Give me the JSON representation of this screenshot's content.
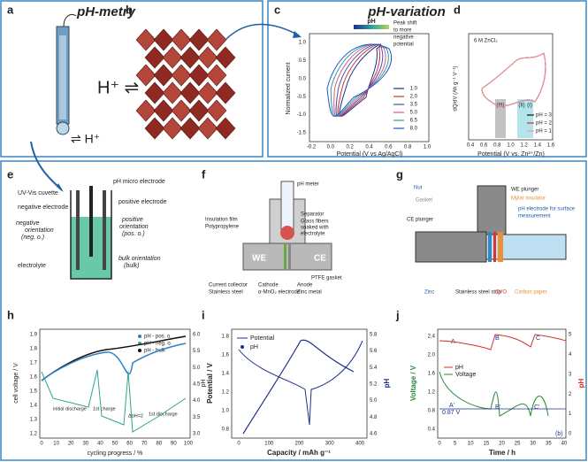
{
  "panel_a": {
    "label": "a",
    "title": "pH-metry",
    "ion": "⇌ H⁺"
  },
  "panel_b": {
    "label": "b",
    "ion": "H⁺ ⇌"
  },
  "panel_c": {
    "label": "c",
    "title": "pH-variation",
    "y_label": "Normalized current",
    "x_label": "Potential (V vs Ag/AgCl)",
    "annotation": [
      "Peak shift",
      "to more",
      "negative",
      "potential"
    ],
    "legend_title": "pH",
    "legend": [
      "1.0",
      "2.0",
      "3.5",
      "5.0",
      "6.5",
      "8.0"
    ],
    "yticks": [
      "1.0",
      "0.5",
      "0.0",
      "-0.5",
      "-1.0",
      "-1.5"
    ],
    "xticks": [
      "-0.2",
      "0.0",
      "0.2",
      "0.4",
      "0.6",
      "0.8",
      "1.0"
    ]
  },
  "panel_d": {
    "label": "d",
    "annotation": "6 M ZnCl₂",
    "y_label": "dQ/dV (Ah g⁻¹ V⁻¹)",
    "x_label": "Potential (V vs. Zn²⁺/Zn)",
    "legend": [
      "pH = 3",
      "pH = 2",
      "pH = 1"
    ],
    "regions": [
      "(III)",
      "(II)",
      "(I)"
    ],
    "xticks": [
      "0.4",
      "0.6",
      "0.8",
      "1.0",
      "1.2",
      "1.4",
      "1.6"
    ]
  },
  "panel_e": {
    "label": "e",
    "texts": [
      "UV-Vis cuvette",
      "negative electrode",
      "negative",
      "orientation",
      "(neg. o.)",
      "electrolyte",
      "pH micro electrode",
      "positive electrode",
      "positive",
      "orientation",
      "(pos. o.)",
      "bulk orientation",
      "(bulk)"
    ]
  },
  "panel_f": {
    "label": "f",
    "texts": [
      "pH meter",
      "Insulation film",
      "Polypropylene",
      "Separator",
      "Glass fibers",
      "soaked with",
      "electrolyte",
      "WE",
      "CE",
      "Current collector",
      "Stainless steel",
      "Cathode",
      "α-MnO₂ electrode",
      "Anode",
      "Zinc metal",
      "PTFE gasket"
    ]
  },
  "panel_g": {
    "label": "g",
    "texts": [
      "Nut",
      "Gasket",
      "WE plunger",
      "Mylar insulator",
      "pH electrode for surface",
      "measurement",
      "CE plunger",
      "Zinc",
      "Stainless steel strip",
      "CVO",
      "Carbon paper"
    ]
  },
  "panel_h": {
    "label": "h",
    "legend": [
      "pH - pos. o.",
      "pH - neg. o.",
      "pH - bulk"
    ],
    "y_label": "cell voltage / V",
    "y2_label": "pH",
    "x_label": "cycling progress / %",
    "annotations": [
      "initial discharge",
      "1st charge",
      "ΔpH=2",
      "1st discharge"
    ],
    "yticks": [
      "1.9",
      "1.8",
      "1.7",
      "1.6",
      "1.5",
      "1.4",
      "1.3",
      "1.2"
    ],
    "y2ticks": [
      "6.0",
      "5.5",
      "5.0",
      "4.5",
      "4.0",
      "3.5",
      "3.0"
    ],
    "xticks": [
      "0",
      "10",
      "20",
      "30",
      "40",
      "50",
      "60",
      "70",
      "80",
      "90",
      "100"
    ]
  },
  "panel_i": {
    "label": "i",
    "legend": [
      "Potential",
      "pH"
    ],
    "y_label": "Potential / V",
    "y2_label": "pH",
    "x_label": "Capacity / mAh g⁻¹",
    "yticks": [
      "1.8",
      "1.6",
      "1.4",
      "1.2",
      "1.0",
      "0.8"
    ],
    "y2ticks": [
      "5.8",
      "5.6",
      "5.4",
      "5.2",
      "5.0",
      "4.8",
      "4.6"
    ],
    "xticks": [
      "0",
      "100",
      "200",
      "300",
      "400"
    ]
  },
  "panel_j": {
    "label": "j",
    "legend": [
      "pH",
      "Voltage"
    ],
    "y_label": "Voltage / V",
    "y2_label": "pH",
    "x_label": "Time / h",
    "annotations": [
      "A",
      "B",
      "C",
      "A'",
      "B'",
      "C'",
      "0.87 V",
      "(b)"
    ],
    "yticks": [
      "2.4",
      "2.0",
      "1.6",
      "1.2",
      "0.8",
      "0.4"
    ],
    "y2ticks": [
      "5",
      "4",
      "3",
      "2",
      "1",
      "0"
    ],
    "xticks": [
      "0",
      "5",
      "10",
      "15",
      "20",
      "25",
      "30",
      "35",
      "40"
    ]
  }
}
